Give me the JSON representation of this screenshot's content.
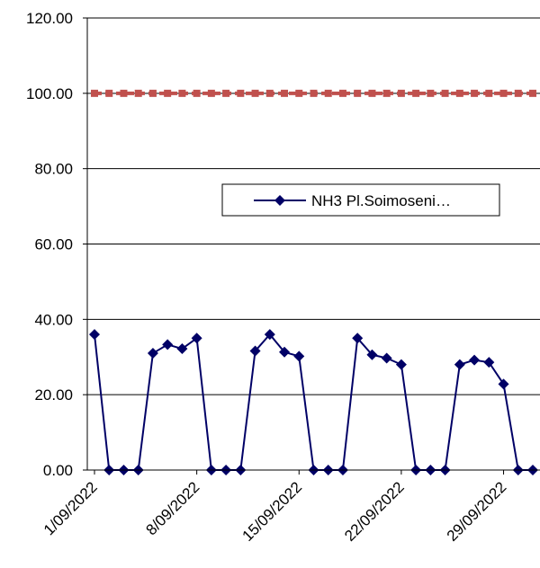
{
  "chart_data": {
    "type": "line",
    "categories": [
      "1/09/2022",
      null,
      null,
      null,
      null,
      null,
      null,
      "8/09/2022",
      null,
      null,
      null,
      null,
      null,
      null,
      "15/09/2022",
      null,
      null,
      null,
      null,
      null,
      null,
      "22/09/2022",
      null,
      null,
      null,
      null,
      null,
      null,
      "29/09/2022",
      null,
      null
    ],
    "series": [
      {
        "name": "NH3 Pl.Soimoseni…",
        "color": "#000066",
        "marker": "diamond",
        "values": [
          36,
          0,
          0,
          0,
          31,
          33.3,
          32.2,
          35,
          0,
          0,
          0,
          31.6,
          36,
          31.3,
          30.2,
          0,
          0,
          0,
          35,
          30.6,
          29.7,
          28,
          0,
          0,
          0,
          28,
          29.2,
          28.6,
          22.8,
          0,
          0
        ]
      },
      {
        "color": "#c0504d",
        "marker": "square",
        "dashed": true,
        "values": [
          100,
          100,
          100,
          100,
          100,
          100,
          100,
          100,
          100,
          100,
          100,
          100,
          100,
          100,
          100,
          100,
          100,
          100,
          100,
          100,
          100,
          100,
          100,
          100,
          100,
          100,
          100,
          100,
          100,
          100,
          100
        ]
      }
    ],
    "ylim": [
      0,
      120
    ],
    "yticks": [
      {
        "value": 0,
        "label": "0.00"
      },
      {
        "value": 20,
        "label": "20.00"
      },
      {
        "value": 40,
        "label": "40.00"
      },
      {
        "value": 60,
        "label": "60.00"
      },
      {
        "value": 80,
        "label": "80.00"
      },
      {
        "value": 100,
        "label": "100.00"
      },
      {
        "value": 120,
        "label": "120.00"
      }
    ],
    "grid": true,
    "legend": "right"
  }
}
